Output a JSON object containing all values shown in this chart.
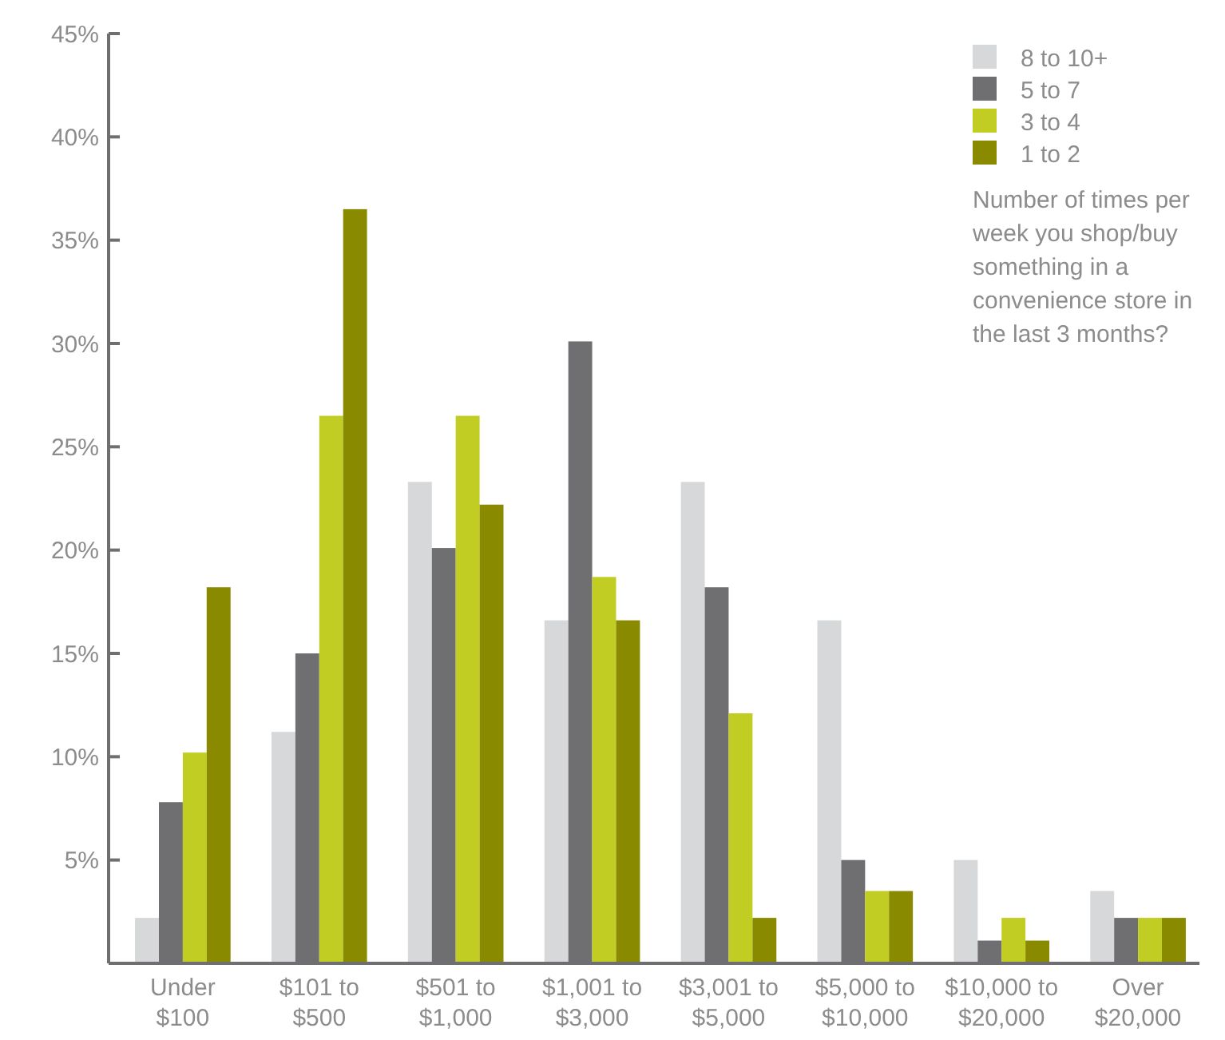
{
  "chart_data": {
    "type": "bar",
    "categories": [
      "Under $100",
      "$101 to $500",
      "$501 to $1,000",
      "$1,001 to $3,000",
      "$3,001 to $5,000",
      "$5,000 to $10,000",
      "$10,000 to $20,000",
      "Over $20,000"
    ],
    "series": [
      {
        "name": "8 to 10+",
        "color": "#d7d8da",
        "values": [
          2.2,
          11.2,
          23.3,
          16.6,
          23.3,
          16.6,
          5.0,
          3.5
        ]
      },
      {
        "name": "5 to 7",
        "color": "#6f6f72",
        "values": [
          7.8,
          15.0,
          20.1,
          30.1,
          18.2,
          5.0,
          1.1,
          2.2
        ]
      },
      {
        "name": "3 to 4",
        "color": "#c1cd23",
        "values": [
          10.2,
          26.5,
          26.5,
          18.7,
          12.1,
          3.5,
          2.2,
          2.2
        ]
      },
      {
        "name": "1 to 2",
        "color": "#8a8a00",
        "values": [
          18.2,
          36.5,
          22.2,
          16.6,
          2.2,
          3.5,
          1.1,
          2.2
        ]
      }
    ],
    "legend_title": "Number of times per week you shop/buy something in a convenience store in the last 3 months?",
    "ylim": [
      0,
      45
    ],
    "yticks": [
      {
        "value": 0,
        "label": null
      },
      {
        "value": 5,
        "label": "5%"
      },
      {
        "value": 10,
        "label": "10%"
      },
      {
        "value": 15,
        "label": "15%"
      },
      {
        "value": 20,
        "label": "20%"
      },
      {
        "value": 25,
        "label": "25%"
      },
      {
        "value": 30,
        "label": "30%"
      },
      {
        "value": 35,
        "label": "35%"
      },
      {
        "value": 40,
        "label": "40%"
      },
      {
        "value": 45,
        "label": "45%"
      }
    ],
    "legend": "top right",
    "grid": false
  }
}
